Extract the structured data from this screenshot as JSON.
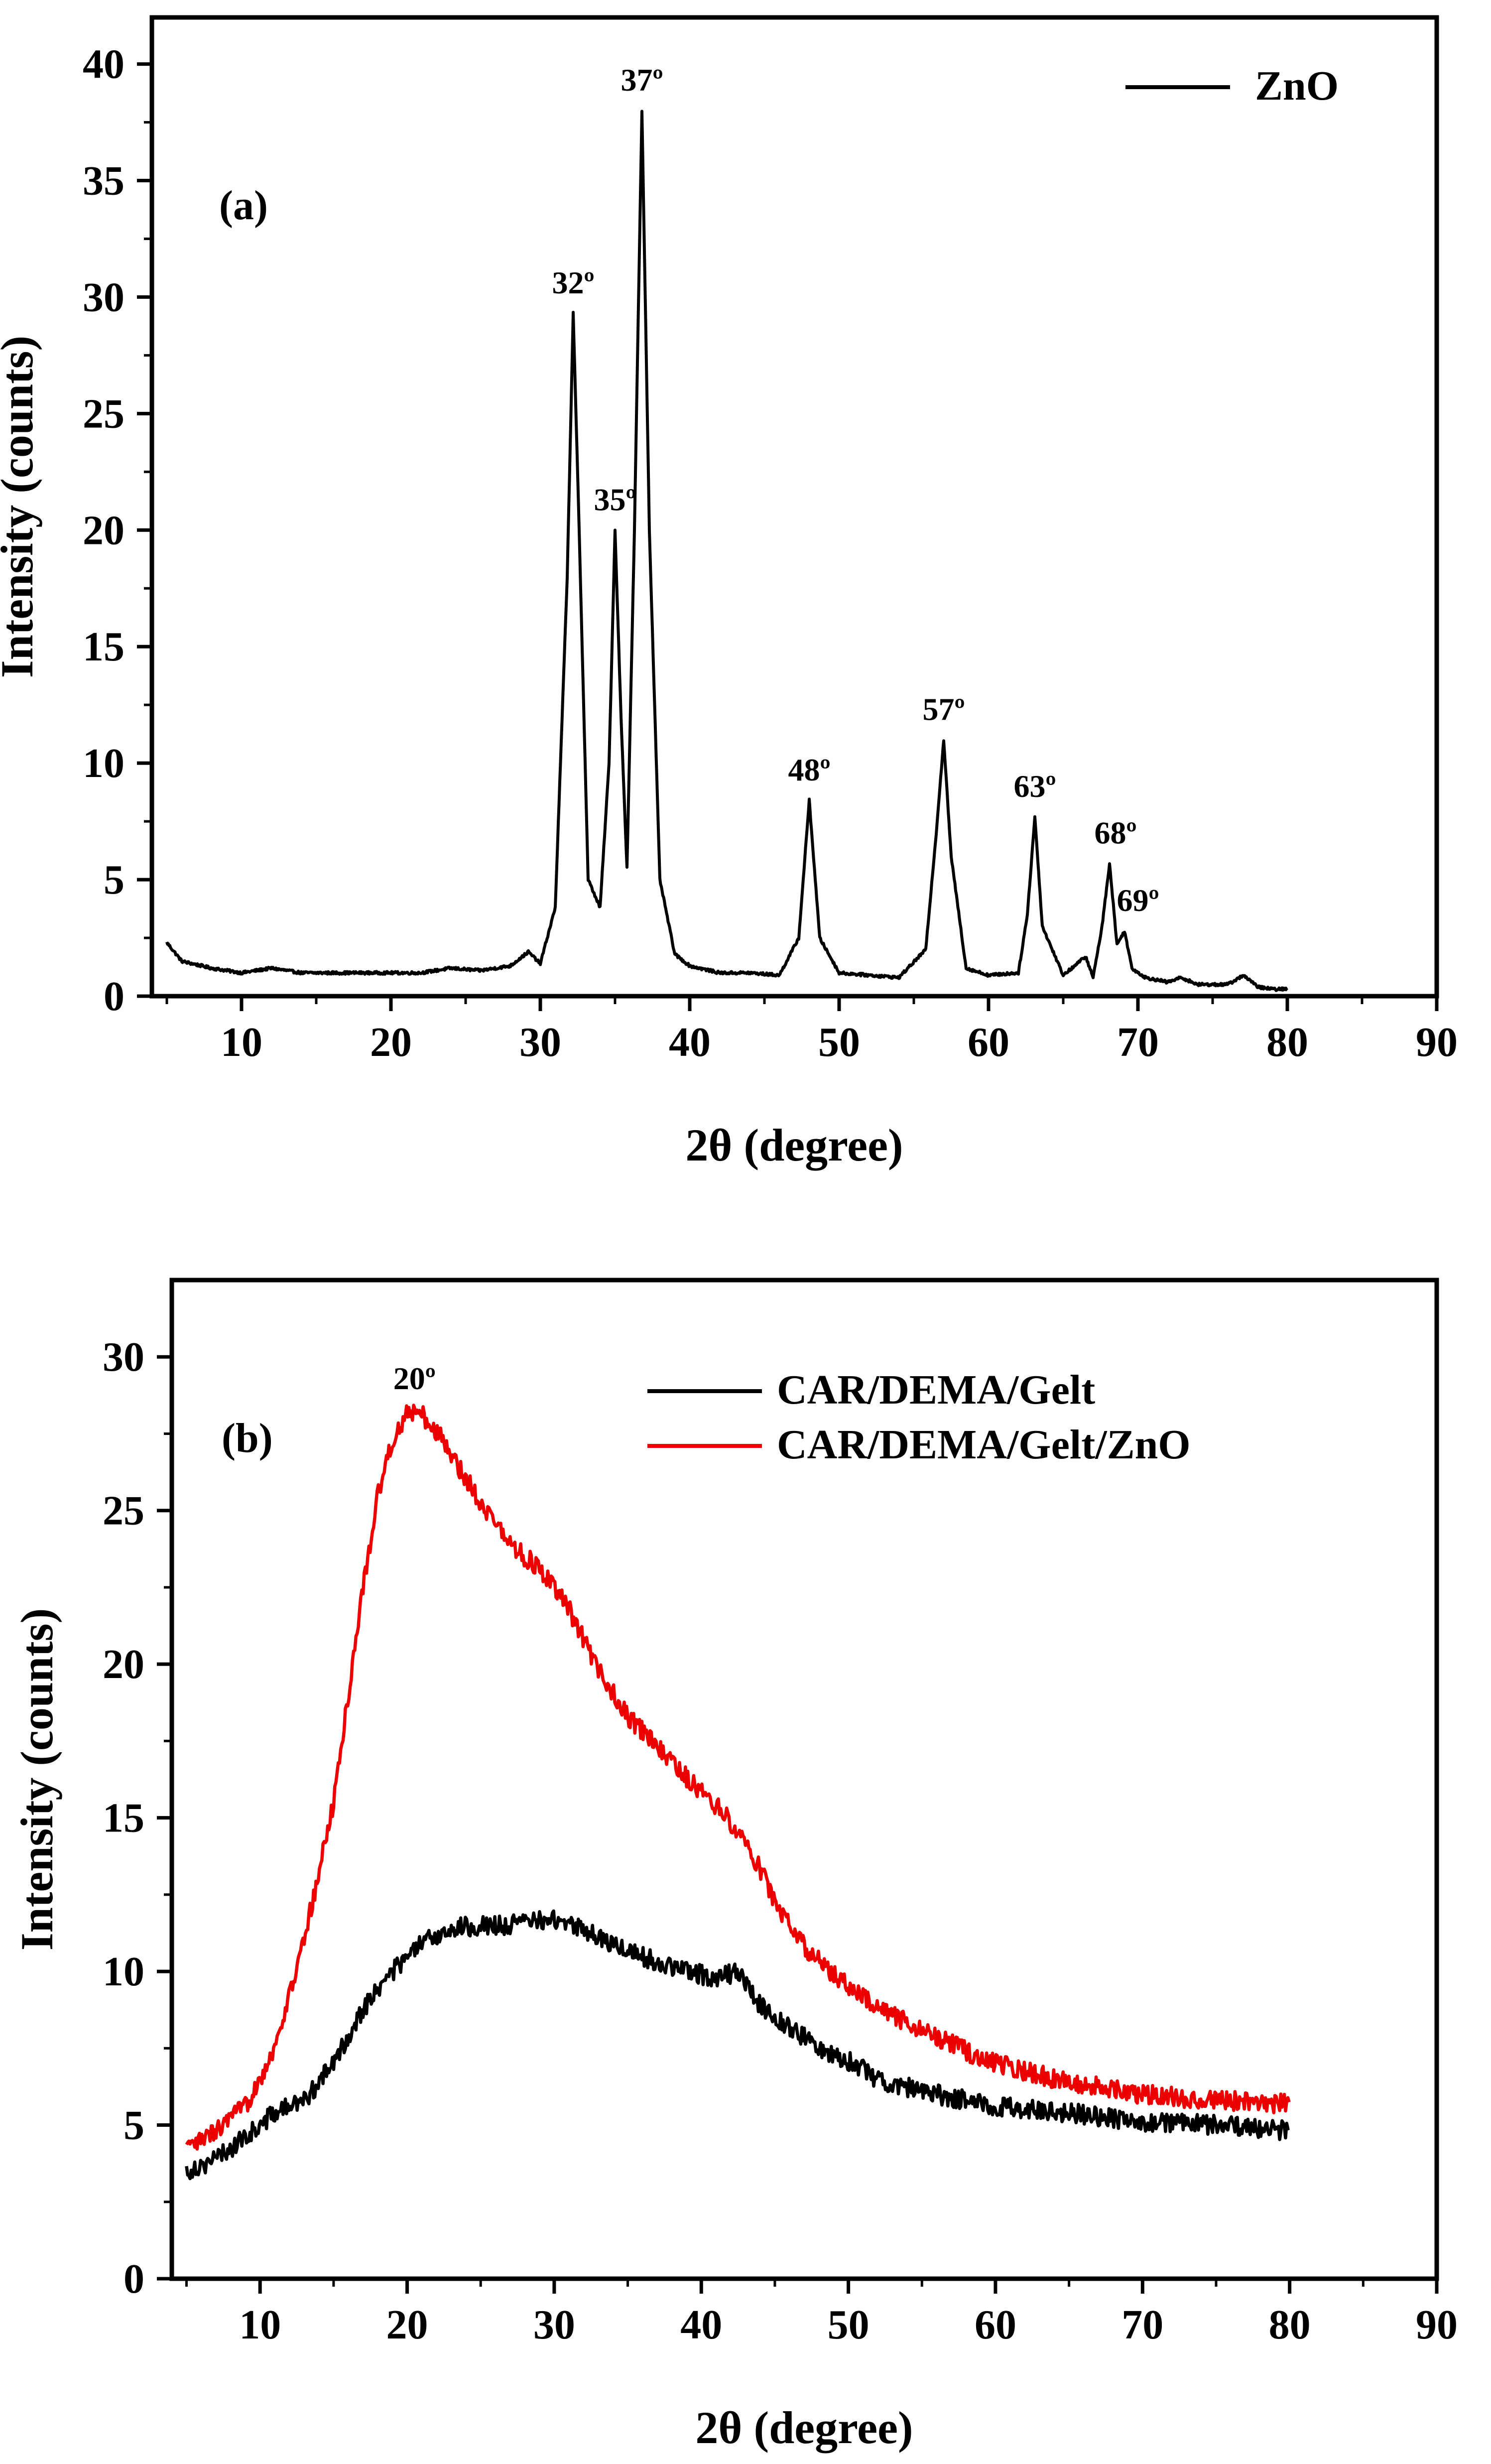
{
  "chart_data": [
    {
      "id": "a",
      "type": "line",
      "panel_label": "(a)",
      "xlabel": "2θ (degree)",
      "ylabel": "Intensity (counts)",
      "xlim": [
        4,
        90
      ],
      "ylim": [
        0,
        42
      ],
      "xticks": [
        10,
        20,
        30,
        40,
        50,
        60,
        70,
        80,
        90
      ],
      "yticks": [
        0,
        5,
        10,
        15,
        20,
        25,
        30,
        35,
        40
      ],
      "legend": {
        "position": "top-right",
        "entries": [
          "ZnO"
        ]
      },
      "series": [
        {
          "name": "ZnO",
          "color": "#000000",
          "x": [
            5,
            6,
            8,
            10,
            12,
            14,
            16,
            18,
            20,
            22,
            24,
            26,
            28,
            29.2,
            30,
            31,
            31.8,
            32.2,
            32.6,
            33.2,
            34,
            34.6,
            35,
            35.4,
            35.8,
            36.3,
            36.8,
            37.3,
            38,
            39,
            40,
            42,
            44,
            46,
            47.3,
            48,
            48.7,
            50,
            52,
            54,
            55.8,
            56.5,
            57,
            57.5,
            58.5,
            60,
            62,
            62.6,
            63.1,
            63.6,
            65,
            66.5,
            67,
            67.6,
            68.1,
            68.6,
            69.1,
            69.6,
            70.5,
            72,
            72.9,
            74,
            76,
            77.1,
            78,
            79,
            80
          ],
          "values": [
            2.3,
            1.5,
            1.2,
            1.0,
            1.2,
            1.0,
            1.0,
            1.0,
            1.0,
            1.0,
            1.2,
            1.1,
            1.3,
            1.9,
            1.4,
            3.8,
            18.0,
            29.3,
            20.0,
            5.0,
            3.8,
            10.0,
            20.0,
            12.0,
            5.5,
            20.0,
            38.0,
            20.0,
            5.0,
            1.8,
            1.3,
            1.0,
            1.0,
            0.9,
            2.5,
            8.4,
            2.5,
            1.0,
            0.9,
            0.8,
            2.0,
            7.0,
            11.0,
            6.0,
            1.2,
            0.9,
            1.0,
            3.5,
            7.7,
            3.0,
            0.9,
            1.7,
            0.8,
            3.0,
            5.7,
            2.2,
            2.8,
            1.2,
            0.8,
            0.6,
            0.8,
            0.5,
            0.5,
            0.9,
            0.4,
            0.3,
            0.3
          ]
        }
      ],
      "annotations": [
        {
          "text": "32º",
          "x": 32.2,
          "y": 29.3
        },
        {
          "text": "35º",
          "x": 35.0,
          "y": 20.0
        },
        {
          "text": "37º",
          "x": 36.8,
          "y": 38.0
        },
        {
          "text": "48º",
          "x": 48.0,
          "y": 8.4
        },
        {
          "text": "57º",
          "x": 57.0,
          "y": 11.0
        },
        {
          "text": "63º",
          "x": 63.1,
          "y": 7.7
        },
        {
          "text": "68º",
          "x": 68.5,
          "y": 5.7
        },
        {
          "text": "69º",
          "x": 70.0,
          "y": 2.8
        }
      ]
    },
    {
      "id": "b",
      "type": "line",
      "panel_label": "(b)",
      "xlabel": "2θ (degree)",
      "ylabel": "Intensity (counts)",
      "xlim": [
        4,
        90
      ],
      "ylim": [
        0,
        32.5
      ],
      "xticks": [
        10,
        20,
        30,
        40,
        50,
        60,
        70,
        80,
        90
      ],
      "yticks": [
        0,
        5,
        10,
        15,
        20,
        25,
        30
      ],
      "legend": {
        "position": "top-right",
        "entries": [
          "CAR/DEMA/Gelt",
          "CAR/DEMA/Gelt/ZnO"
        ]
      },
      "series": [
        {
          "name": "CAR/DEMA/Gelt",
          "color": "#000000",
          "x": [
            5,
            7,
            9,
            11,
            13,
            15,
            17,
            19,
            21,
            23,
            25,
            27,
            29,
            31,
            33,
            35,
            37,
            39,
            41,
            42.5,
            44,
            46,
            48,
            50,
            52,
            55,
            60,
            65,
            70,
            75,
            80
          ],
          "values": [
            3.5,
            3.9,
            4.6,
            5.4,
            5.8,
            7.0,
            8.8,
            10.0,
            10.9,
            11.4,
            11.5,
            11.5,
            11.7,
            11.6,
            11.1,
            10.7,
            10.3,
            10.0,
            9.8,
            10.0,
            8.9,
            8.2,
            7.5,
            7.1,
            6.5,
            6.1,
            5.6,
            5.4,
            5.1,
            5.0,
            4.8
          ]
        },
        {
          "name": "CAR/DEMA/Gelt/ZnO",
          "color": "#ee0000",
          "x": [
            5,
            7,
            9,
            11,
            13,
            15,
            16,
            17,
            18,
            19,
            20,
            21,
            22,
            23,
            25,
            27,
            29,
            31,
            33,
            35,
            37,
            39,
            41,
            43,
            45,
            47,
            50,
            52,
            55,
            58,
            60,
            65,
            70,
            75,
            80
          ],
          "values": [
            4.2,
            4.8,
            5.6,
            7.5,
            11.0,
            15.5,
            19.0,
            22.5,
            25.5,
            27.3,
            28.2,
            28.1,
            27.6,
            26.8,
            25.3,
            23.9,
            23.1,
            21.8,
            19.8,
            18.3,
            17.3,
            16.3,
            15.4,
            14.3,
            12.3,
            10.8,
            9.5,
            8.8,
            8.1,
            7.4,
            7.0,
            6.4,
            6.0,
            5.8,
            5.7
          ]
        }
      ],
      "annotations": [
        {
          "text": "20º",
          "x": 20.5,
          "y": 28.3
        }
      ]
    }
  ]
}
